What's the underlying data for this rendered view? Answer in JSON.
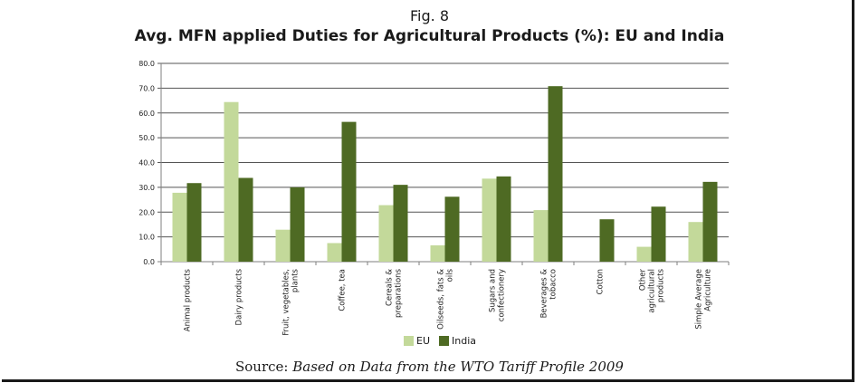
{
  "figure_label": "Fig. 8",
  "source_prefix": "Source:",
  "source_text": "Based on Data from the WTO Tariff Profile 2009",
  "colors": {
    "EU": "#c3d99a",
    "India": "#4e6a23",
    "axis": "#7f7f7f",
    "grid": "#555555"
  },
  "chart_data": {
    "type": "bar",
    "title": "Avg. MFN applied Duties for Agricultural Products (%): EU and India",
    "xlabel": "",
    "ylabel": "",
    "ylim": [
      0,
      80
    ],
    "yticks": [
      "0.0",
      "10.0",
      "20.0",
      "30.0",
      "40.0",
      "50.0",
      "60.0",
      "70.0",
      "80.0"
    ],
    "grid": true,
    "legend_position": "bottom",
    "categories": [
      [
        "Animal products"
      ],
      [
        "Dairy products"
      ],
      [
        "Fruit, vegetables,",
        "plants"
      ],
      [
        "Coffee, tea"
      ],
      [
        "Cereals &",
        "preparations"
      ],
      [
        "Oilseeds, fats &",
        "oils"
      ],
      [
        "Sugars and",
        "confectionery"
      ],
      [
        "Beverages &",
        "tobacco"
      ],
      [
        "Cotton"
      ],
      [
        "Other",
        "agricultural",
        "products"
      ],
      [
        "Simple Average",
        "Agriculture"
      ]
    ],
    "series": [
      {
        "name": "EU",
        "values": [
          27.8,
          64.4,
          12.9,
          7.5,
          22.8,
          6.6,
          33.5,
          20.8,
          0.0,
          6.0,
          16.0
        ]
      },
      {
        "name": "India",
        "values": [
          31.7,
          33.8,
          30.0,
          56.4,
          31.0,
          26.2,
          34.4,
          70.8,
          17.1,
          22.2,
          32.2
        ]
      }
    ]
  }
}
